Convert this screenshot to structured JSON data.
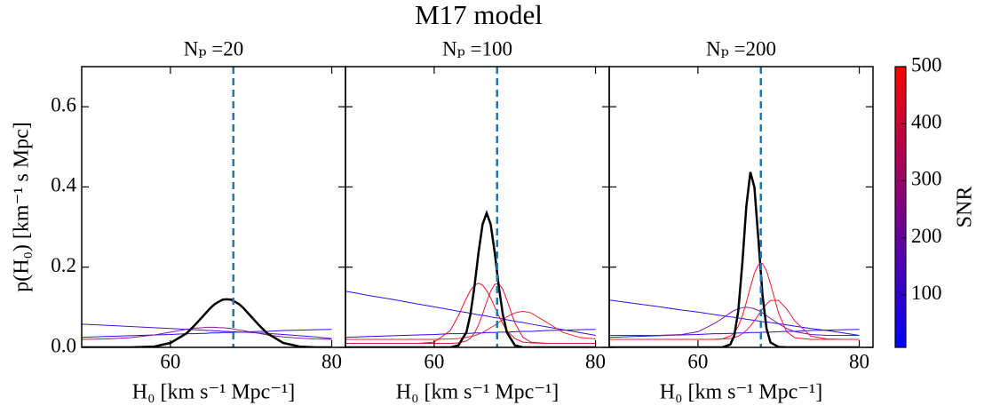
{
  "title": "M17 model",
  "colorbar": {
    "label": "SNR",
    "lim": [
      8,
      500
    ],
    "ticks": [
      100,
      200,
      300,
      400,
      500
    ],
    "colors": [
      "#0000ff",
      "#ff0000"
    ]
  },
  "chart_data": [
    {
      "type": "line",
      "title": "Nₚ =20",
      "xlabel": "H₀ [km s⁻¹ Mpc⁻¹]",
      "ylabel": "p(H₀) [km⁻¹ s Mpc]",
      "xlim": [
        49,
        81.7
      ],
      "ylim": [
        0,
        0.7
      ],
      "xticks": [
        60,
        80
      ],
      "yticks": [
        {
          "value": 0,
          "label": "0.0"
        },
        0.2,
        0.4,
        0.6
      ],
      "show_ytick_labels": true,
      "vline": {
        "value": 67.8,
        "color": "#1f77b4"
      },
      "x": [
        49,
        52,
        55,
        58,
        60,
        62,
        63,
        64,
        64.5,
        65,
        65.5,
        66,
        66.5,
        67,
        67.5,
        68,
        68.5,
        69,
        70,
        71,
        72,
        74,
        76,
        78,
        80
      ],
      "series": [
        {
          "color": "#2a0cf0",
          "linewidth": 1,
          "values": [
            0.025,
            0.027,
            0.029,
            0.031,
            0.032,
            0.034,
            0.034,
            0.035,
            0.035,
            0.036,
            0.036,
            0.036,
            0.037,
            0.037,
            0.037,
            0.038,
            0.038,
            0.038,
            0.039,
            0.04,
            0.04,
            0.042,
            0.043,
            0.044,
            0.045
          ]
        },
        {
          "color": "#4a10d0",
          "linewidth": 1,
          "values": [
            0.058,
            0.055,
            0.052,
            0.049,
            0.047,
            0.045,
            0.044,
            0.043,
            0.042,
            0.042,
            0.041,
            0.041,
            0.04,
            0.04,
            0.039,
            0.039,
            0.038,
            0.038,
            0.037,
            0.036,
            0.035,
            0.032,
            0.029,
            0.026,
            0.022
          ]
        },
        {
          "color": "#8a1890",
          "linewidth": 1,
          "values": [
            0.02,
            0.021,
            0.024,
            0.031,
            0.038,
            0.045,
            0.048,
            0.049,
            0.05,
            0.05,
            0.05,
            0.049,
            0.049,
            0.048,
            0.047,
            0.045,
            0.043,
            0.042,
            0.038,
            0.035,
            0.031,
            0.026,
            0.023,
            0.021,
            0.02
          ]
        },
        {
          "color": "#000000",
          "linewidth": 2.5,
          "values": [
            0,
            0,
            0,
            0.002,
            0.011,
            0.035,
            0.055,
            0.077,
            0.088,
            0.099,
            0.108,
            0.114,
            0.119,
            0.12,
            0.119,
            0.114,
            0.108,
            0.099,
            0.077,
            0.055,
            0.035,
            0.011,
            0.002,
            0,
            0
          ]
        }
      ]
    },
    {
      "type": "line",
      "title": "Nₚ =100",
      "xlabel": "H₀ [km s⁻¹ Mpc⁻¹]",
      "xlim": [
        49,
        81.7
      ],
      "ylim": [
        0,
        0.7
      ],
      "xticks": [
        60,
        80
      ],
      "yticks": [
        {
          "value": 0,
          "label": "0.0"
        },
        0.2,
        0.4,
        0.6
      ],
      "show_ytick_labels": false,
      "vline": {
        "value": 67.8,
        "color": "#1f77b4"
      },
      "x": [
        49,
        52,
        55,
        58,
        60,
        62,
        63,
        64,
        64.5,
        65,
        65.5,
        66,
        66.5,
        67,
        67.5,
        68,
        68.5,
        69,
        70,
        71,
        72,
        74,
        76,
        78,
        80
      ],
      "series": [
        {
          "color": "#2a0cf0",
          "linewidth": 1,
          "values": [
            0.025,
            0.027,
            0.029,
            0.031,
            0.032,
            0.034,
            0.034,
            0.035,
            0.035,
            0.036,
            0.036,
            0.036,
            0.037,
            0.037,
            0.037,
            0.038,
            0.038,
            0.038,
            0.039,
            0.04,
            0.04,
            0.042,
            0.043,
            0.044,
            0.045
          ]
        },
        {
          "color": "#3010e8",
          "linewidth": 1,
          "values": [
            0.14,
            0.129,
            0.119,
            0.108,
            0.101,
            0.094,
            0.09,
            0.087,
            0.085,
            0.083,
            0.081,
            0.08,
            0.078,
            0.076,
            0.074,
            0.073,
            0.071,
            0.069,
            0.065,
            0.062,
            0.058,
            0.051,
            0.044,
            0.037,
            0.03
          ]
        },
        {
          "color": "#e02838",
          "linewidth": 1,
          "values": [
            0.02,
            0.02,
            0.02,
            0.02,
            0.02,
            0.021,
            0.022,
            0.025,
            0.027,
            0.029,
            0.033,
            0.037,
            0.043,
            0.049,
            0.055,
            0.062,
            0.069,
            0.076,
            0.086,
            0.09,
            0.086,
            0.062,
            0.037,
            0.025,
            0.021
          ]
        },
        {
          "color": "#e8102c",
          "linewidth": 1,
          "values": [
            0.01,
            0.01,
            0.01,
            0.01,
            0.013,
            0.042,
            0.079,
            0.123,
            0.142,
            0.155,
            0.16,
            0.155,
            0.142,
            0.123,
            0.101,
            0.079,
            0.059,
            0.042,
            0.022,
            0.013,
            0.011,
            0.01,
            0.01,
            0.01,
            0.01
          ]
        },
        {
          "color": "#d81840",
          "linewidth": 1,
          "values": [
            0.01,
            0.01,
            0.01,
            0.01,
            0.01,
            0.01,
            0.011,
            0.016,
            0.023,
            0.036,
            0.056,
            0.083,
            0.113,
            0.14,
            0.157,
            0.159,
            0.145,
            0.119,
            0.061,
            0.025,
            0.013,
            0.01,
            0.01,
            0.01,
            0.01
          ]
        },
        {
          "color": "#000000",
          "linewidth": 2.5,
          "values": [
            0,
            0,
            0,
            0,
            0,
            0,
            0.005,
            0.038,
            0.083,
            0.153,
            0.237,
            0.307,
            0.335,
            0.307,
            0.237,
            0.153,
            0.083,
            0.038,
            0.005,
            0,
            0,
            0,
            0,
            0,
            0
          ]
        }
      ]
    },
    {
      "type": "line",
      "title": "Nₚ =200",
      "xlabel": "H₀ [km s⁻¹ Mpc⁻¹]",
      "xlim": [
        49,
        81.7
      ],
      "ylim": [
        0,
        0.7
      ],
      "xticks": [
        60,
        80
      ],
      "yticks": [
        {
          "value": 0,
          "label": "0.0"
        },
        0.2,
        0.4,
        0.6
      ],
      "show_ytick_labels": false,
      "vline": {
        "value": 67.8,
        "color": "#1f77b4"
      },
      "x": [
        49,
        52,
        55,
        58,
        60,
        62,
        63,
        64,
        64.5,
        65,
        65.5,
        66,
        66.5,
        67,
        67.5,
        68,
        68.5,
        69,
        70,
        71,
        72,
        74,
        76,
        78,
        80
      ],
      "series": [
        {
          "color": "#2a0cf0",
          "linewidth": 1,
          "values": [
            0.025,
            0.027,
            0.029,
            0.031,
            0.032,
            0.034,
            0.034,
            0.035,
            0.035,
            0.036,
            0.036,
            0.036,
            0.037,
            0.037,
            0.037,
            0.038,
            0.038,
            0.038,
            0.039,
            0.04,
            0.04,
            0.042,
            0.043,
            0.044,
            0.045
          ]
        },
        {
          "color": "#3010e8",
          "linewidth": 1,
          "values": [
            0.118,
            0.11,
            0.102,
            0.093,
            0.088,
            0.082,
            0.079,
            0.076,
            0.075,
            0.073,
            0.072,
            0.07,
            0.069,
            0.067,
            0.066,
            0.064,
            0.063,
            0.062,
            0.059,
            0.056,
            0.053,
            0.047,
            0.042,
            0.036,
            0.03
          ]
        },
        {
          "color": "#7a18a0",
          "linewidth": 1,
          "values": [
            0.03,
            0.03,
            0.03,
            0.032,
            0.039,
            0.059,
            0.072,
            0.086,
            0.092,
            0.096,
            0.099,
            0.1,
            0.099,
            0.096,
            0.092,
            0.086,
            0.079,
            0.072,
            0.059,
            0.047,
            0.039,
            0.032,
            0.03,
            0.03,
            0.03
          ]
        },
        {
          "color": "#e02040",
          "linewidth": 1,
          "values": [
            0.02,
            0.02,
            0.02,
            0.02,
            0.02,
            0.02,
            0.021,
            0.022,
            0.024,
            0.028,
            0.034,
            0.042,
            0.053,
            0.066,
            0.081,
            0.096,
            0.108,
            0.117,
            0.117,
            0.096,
            0.066,
            0.028,
            0.021,
            0.02,
            0.02
          ]
        },
        {
          "color": "#f01828",
          "linewidth": 1,
          "values": [
            0.02,
            0.02,
            0.02,
            0.02,
            0.02,
            0.02,
            0.021,
            0.028,
            0.036,
            0.053,
            0.078,
            0.112,
            0.15,
            0.185,
            0.206,
            0.209,
            0.191,
            0.158,
            0.085,
            0.039,
            0.024,
            0.02,
            0.02,
            0.02,
            0.02
          ]
        },
        {
          "color": "#000000",
          "linewidth": 2.5,
          "values": [
            0,
            0,
            0,
            0,
            0,
            0,
            0,
            0.007,
            0.029,
            0.091,
            0.209,
            0.352,
            0.437,
            0.399,
            0.267,
            0.131,
            0.047,
            0.012,
            0.001,
            0,
            0,
            0,
            0,
            0,
            0
          ]
        }
      ]
    }
  ]
}
